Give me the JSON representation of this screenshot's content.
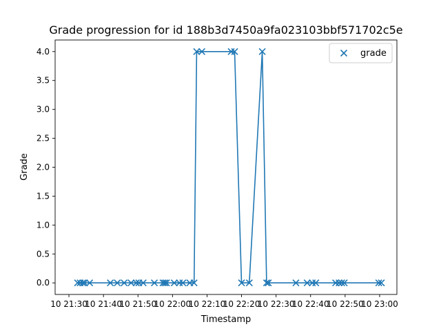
{
  "chart_data": {
    "type": "line",
    "title": "Grade progression for id 188b3d7450a9fa023103bbf571702c5e",
    "xlabel": "Timestamp",
    "ylabel": "Grade",
    "legend": {
      "placement": "top-right",
      "label": "grade",
      "marker": "x"
    },
    "grid": false,
    "ylim": [
      -0.2,
      4.2
    ],
    "xlim": [
      "21:26",
      "23:05"
    ],
    "xticks": [
      {
        "t": "21:30",
        "label": "10 21:30"
      },
      {
        "t": "21:40",
        "label": "10 21:40"
      },
      {
        "t": "21:50",
        "label": "10 21:50"
      },
      {
        "t": "22:00",
        "label": "10 22:00"
      },
      {
        "t": "22:10",
        "label": "10 22:10"
      },
      {
        "t": "22:20",
        "label": "10 22:20"
      },
      {
        "t": "22:30",
        "label": "10 22:30"
      },
      {
        "t": "22:40",
        "label": "10 22:40"
      },
      {
        "t": "22:50",
        "label": "10 22:50"
      },
      {
        "t": "23:00",
        "label": "10 23:00"
      }
    ],
    "yticks": [
      0.0,
      0.5,
      1.0,
      1.5,
      2.0,
      2.5,
      3.0,
      3.5,
      4.0
    ],
    "series": [
      {
        "name": "grade",
        "color": "#1f77b4",
        "points": [
          {
            "t": "21:32:30",
            "y": 0
          },
          {
            "t": "21:33:15",
            "y": 0
          },
          {
            "t": "21:34:00",
            "y": 0
          },
          {
            "t": "21:34:30",
            "y": 0
          },
          {
            "t": "21:36:00",
            "y": 0
          },
          {
            "t": "21:42:00",
            "y": 0
          },
          {
            "t": "21:44:00",
            "y": 0
          },
          {
            "t": "21:46:00",
            "y": 0
          },
          {
            "t": "21:48:00",
            "y": 0
          },
          {
            "t": "21:49:30",
            "y": 0
          },
          {
            "t": "21:50:15",
            "y": 0
          },
          {
            "t": "21:51:30",
            "y": 0
          },
          {
            "t": "21:54:45",
            "y": 0
          },
          {
            "t": "21:57:15",
            "y": 0
          },
          {
            "t": "21:57:45",
            "y": 0
          },
          {
            "t": "21:58:15",
            "y": 0
          },
          {
            "t": "22:00:30",
            "y": 0
          },
          {
            "t": "22:02:00",
            "y": 0
          },
          {
            "t": "22:03:00",
            "y": 0
          },
          {
            "t": "22:05:00",
            "y": 0
          },
          {
            "t": "22:06:15",
            "y": 0
          },
          {
            "t": "22:07:00",
            "y": 4
          },
          {
            "t": "22:08:30",
            "y": 4
          },
          {
            "t": "22:17:00",
            "y": 4
          },
          {
            "t": "22:18:00",
            "y": 4
          },
          {
            "t": "22:20:00",
            "y": 0
          },
          {
            "t": "22:22:15",
            "y": 0
          },
          {
            "t": "22:26:00",
            "y": 4
          },
          {
            "t": "22:27:15",
            "y": 0
          },
          {
            "t": "22:27:45",
            "y": 0
          },
          {
            "t": "22:35:45",
            "y": 0
          },
          {
            "t": "22:39:00",
            "y": 0
          },
          {
            "t": "22:40:30",
            "y": 0
          },
          {
            "t": "22:41:30",
            "y": 0
          },
          {
            "t": "22:47:15",
            "y": 0
          },
          {
            "t": "22:48:15",
            "y": 0
          },
          {
            "t": "22:49:00",
            "y": 0
          },
          {
            "t": "22:49:45",
            "y": 0
          },
          {
            "t": "22:59:45",
            "y": 0
          },
          {
            "t": "23:00:30",
            "y": 0
          }
        ]
      }
    ]
  }
}
